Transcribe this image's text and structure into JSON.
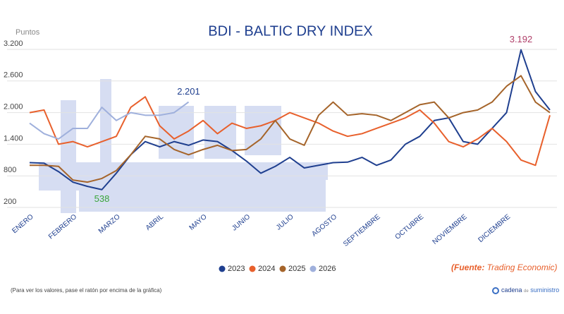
{
  "chart_data": {
    "type": "line",
    "title": "BDI - BALTIC DRY INDEX",
    "y_label": "Puntos",
    "categories": [
      "ENERO",
      null,
      null,
      "FEBRERO",
      null,
      null,
      "MARZO",
      null,
      null,
      "ABRIL",
      null,
      null,
      "MAYO",
      null,
      null,
      "JUNIO",
      null,
      null,
      "JULIO",
      null,
      null,
      "AGOSTO",
      null,
      null,
      "SEPTIEMBRE",
      null,
      null,
      "OCTUBRE",
      null,
      null,
      "NOVIEMBRE",
      null,
      null,
      "DICIEMBRE",
      null,
      null,
      null
    ],
    "series": [
      {
        "name": "2023",
        "color": "#1f3f8f",
        "values": [
          1050,
          1040,
          880,
          680,
          600,
          538,
          850,
          1200,
          1450,
          1350,
          1450,
          1380,
          1480,
          1450,
          1280,
          1080,
          850,
          980,
          1150,
          950,
          1000,
          1050,
          1060,
          1150,
          1000,
          1100,
          1400,
          1550,
          1850,
          1900,
          1450,
          1400,
          1700,
          2000,
          3192,
          2400,
          2050
        ],
        "value_labels": [
          null,
          null,
          null,
          null,
          null,
          "538",
          null,
          null,
          null,
          null,
          null,
          null,
          null,
          null,
          null,
          null,
          null,
          null,
          null,
          null,
          null,
          null,
          null,
          null,
          null,
          null,
          null,
          null,
          null,
          null,
          null,
          null,
          null,
          null,
          "3.192",
          null,
          null
        ],
        "label_colors": [
          "#3aa53a",
          "#b0406a"
        ]
      },
      {
        "name": "2024",
        "color": "#e8602c",
        "values": [
          2000,
          2050,
          1400,
          1450,
          1350,
          1450,
          1550,
          2100,
          2300,
          1750,
          1500,
          1650,
          1850,
          1600,
          1800,
          1700,
          1750,
          1850,
          2000,
          1900,
          1800,
          1650,
          1550,
          1600,
          1700,
          1800,
          1900,
          2050,
          1800,
          1450,
          1350,
          1500,
          1700,
          1450,
          1100,
          1000,
          1950
        ]
      },
      {
        "name": "2025",
        "color": "#a5642a",
        "values": [
          1000,
          1000,
          980,
          720,
          680,
          750,
          900,
          1200,
          1550,
          1500,
          1300,
          1200,
          1300,
          1380,
          1280,
          1300,
          1500,
          1850,
          1500,
          1380,
          1950,
          2200,
          1950,
          1980,
          1950,
          1850,
          2000,
          2150,
          2200,
          1900,
          2000,
          2050,
          2200,
          2500,
          2700,
          2200,
          2000
        ]
      },
      {
        "name": "2026",
        "color": "#9fb0dc",
        "values": [
          1800,
          1600,
          1500,
          1700,
          1700,
          2100,
          1850,
          2000,
          1950,
          1950,
          2000,
          2201,
          null,
          null,
          null,
          null,
          null,
          null,
          null,
          null,
          null,
          null,
          null,
          null,
          null,
          null,
          null,
          null,
          null,
          null,
          null,
          null,
          null,
          null,
          null,
          null,
          null
        ],
        "value_labels": [
          null,
          null,
          null,
          null,
          null,
          null,
          null,
          null,
          null,
          null,
          null,
          "2.201",
          null,
          null,
          null,
          null,
          null,
          null,
          null,
          null,
          null,
          null,
          null,
          null,
          null,
          null,
          null,
          null,
          null,
          null,
          null,
          null,
          null,
          null,
          null,
          null,
          null
        ],
        "label_colors": [
          "#1f3f8f"
        ]
      }
    ],
    "ylim": [
      200,
      3300
    ],
    "yticks": [
      200,
      800,
      {
        "value": 1400,
        "label": "1.400"
      },
      {
        "value": 2000,
        "label": "2.000"
      },
      {
        "value": 2600,
        "label": "2.600"
      },
      {
        "value": 3200,
        "label": "3.200"
      }
    ],
    "grid": true,
    "legend": "bottom",
    "source_prefix": "(Fuente:",
    "source": " Trading Economic)",
    "footnote": "(Para ver los valores, pase el ratón por encima de la gráfica)",
    "logo": [
      "cadena",
      "de",
      "suministro"
    ]
  }
}
